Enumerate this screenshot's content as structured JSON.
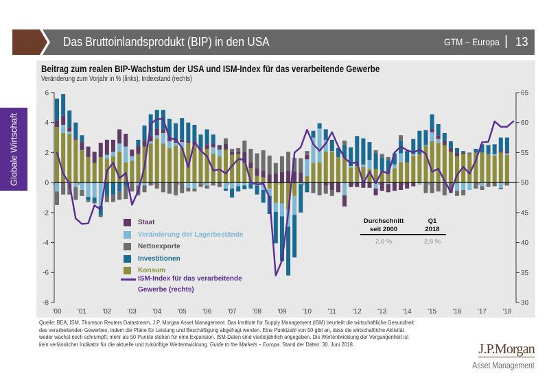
{
  "theme": {
    "header_accent": "#6b3d2a",
    "header_band": "#676767",
    "side_tab": "#5a2d91",
    "panel_bg": "#e8e8e8",
    "brand": "#5b3a29"
  },
  "header": {
    "title": "Das Bruttoinlandsprodukt (BIP) in den USA",
    "series_label": "GTM – Europa",
    "separator": "|",
    "page_number": "13"
  },
  "side_tab": {
    "label": "Globale Wirtschaft"
  },
  "stats_table": {
    "columns": [
      {
        "header": [
          "Durchschnitt",
          "seit 2000"
        ],
        "value": "2,0 %"
      },
      {
        "header": [
          "Q1",
          "2018"
        ],
        "value": "2,8 %"
      }
    ]
  },
  "footer": {
    "lines": [
      "Quelle: BEA, ISM, Thomson Reuters Datastream, J.P. Morgan Asset Management. Das Institute for Supply Management (ISM) beurteilt die wirtschaftliche Gesundheit",
      "des verarbeitenden Gewerbes, indem die Pläne für Leistung und Beschäftigung abgefragt werden. Eine Punktzahl von 50 gibt an, dass die wirtschaftliche Aktivität",
      "weder wächst noch schrumpft; mehr als 50 Punkte stehen für eine Expansion. ISM-Daten sind vierteljährlich angegeben. Die Wertentwicklung der Vergangenheit ist"
    ],
    "last_line": {
      "before": "kein verlässlicher Indikator für die aktuelle und zukünftige Wertentwicklung. ",
      "italic": "Guide to the Markets – Europa",
      "after": ". Stand der Daten: 30. Juni 2018."
    }
  },
  "logo": {
    "brand": "J.P.Morgan",
    "division": "Asset Management"
  },
  "chart_data": {
    "type": "bar",
    "subtype": "stacked bar with line on secondary axis",
    "title": "Beitrag zum realen BIP-Wachstum der USA und ISM-Index für das verarbeitende Gewerbe",
    "subtitle": "Veränderung zum Vorjahr in % (links); Indexstand (rechts)",
    "frequency": "quarterly",
    "x_start": 2000.0,
    "x_step": 0.25,
    "x_tick_labels": [
      "'00",
      "'01",
      "'02",
      "'03",
      "'04",
      "'05",
      "'06",
      "'07",
      "'08",
      "'09",
      "'10",
      "'11",
      "'12",
      "'13",
      "'14",
      "'15",
      "'16",
      "'17",
      "'18"
    ],
    "left_axis": {
      "label": "Veränderung zum Vorjahr in %",
      "range": [
        -8,
        6
      ],
      "ticks": [
        6,
        4,
        2,
        0,
        -2,
        -4,
        -6,
        -8
      ]
    },
    "right_axis": {
      "label": "Indexstand",
      "range": [
        30,
        65
      ],
      "ticks": [
        65,
        60,
        55,
        50,
        45,
        40,
        35,
        30
      ]
    },
    "grid": false,
    "series": [
      {
        "key": "konsum",
        "name": "Konsum",
        "color": "#8c8d3c",
        "axis": "left",
        "values": [
          3.7,
          3.3,
          3.25,
          2.85,
          2.15,
          1.7,
          1.3,
          1.7,
          1.6,
          1.75,
          2.05,
          1.35,
          1.45,
          1.9,
          2.4,
          2.6,
          2.95,
          2.6,
          2.3,
          2.45,
          2.3,
          2.65,
          2.55,
          2.2,
          2.25,
          1.9,
          1.75,
          2.2,
          1.85,
          1.9,
          1.3,
          0.95,
          0.45,
          0.35,
          -0.4,
          -1.35,
          -1.4,
          -1.8,
          -0.9,
          0.05,
          0.45,
          1.3,
          1.35,
          2.05,
          2.05,
          1.7,
          1.65,
          1.0,
          1.1,
          1.05,
          0.9,
          0.9,
          0.8,
          0.65,
          0.95,
          1.35,
          1.35,
          1.8,
          1.9,
          2.45,
          2.75,
          2.65,
          2.5,
          2.05,
          1.75,
          1.9,
          1.9,
          2.0,
          2.0,
          1.9,
          1.8,
          2.0,
          1.85
        ]
      },
      {
        "key": "lager",
        "name": "Veränderung der Lagerbestände",
        "color": "#7fb8d4",
        "axis": "left",
        "values": [
          -0.6,
          0.55,
          0.15,
          -0.3,
          -0.5,
          -0.95,
          -1.0,
          -1.55,
          0.25,
          0.3,
          0.55,
          1.05,
          0.3,
          -0.2,
          -0.2,
          0.15,
          0.2,
          0.7,
          0.45,
          0.2,
          0.4,
          -0.35,
          -0.4,
          -0.05,
          -0.2,
          0.45,
          0.45,
          -0.4,
          -0.4,
          -0.25,
          -0.2,
          -0.05,
          -0.2,
          -0.5,
          -0.5,
          -0.6,
          -0.85,
          -1.15,
          -1.25,
          -0.1,
          1.1,
          1.7,
          2.25,
          0.8,
          0.05,
          0.0,
          -0.85,
          0.1,
          0.0,
          0.15,
          0.6,
          -0.4,
          0.0,
          -0.1,
          0.25,
          0.6,
          0.0,
          0.1,
          -0.15,
          0.05,
          0.6,
          0.25,
          0.0,
          0.0,
          -0.55,
          -0.5,
          -0.5,
          0.0,
          -0.25,
          0.0,
          0.1,
          -0.35,
          0.1
        ]
      },
      {
        "key": "staat",
        "name": "Staat",
        "color": "#5e3b63",
        "axis": "left",
        "values": [
          0.45,
          0.6,
          0.3,
          0.1,
          0.55,
          0.7,
          0.75,
          0.95,
          1.0,
          0.8,
          0.95,
          0.85,
          0.45,
          0.55,
          0.4,
          0.4,
          0.45,
          0.25,
          0.2,
          0.15,
          0.15,
          0.1,
          0.15,
          0.1,
          0.3,
          0.25,
          0.25,
          0.4,
          0.2,
          0.15,
          0.75,
          0.4,
          0.5,
          0.45,
          0.55,
          0.6,
          0.7,
          0.8,
          0.75,
          0.62,
          0.3,
          0.0,
          0.0,
          -0.2,
          -0.5,
          -0.65,
          -0.75,
          -0.3,
          -0.3,
          -0.35,
          -0.35,
          -0.45,
          -0.55,
          -0.55,
          -0.55,
          -0.5,
          -0.4,
          -0.25,
          0.0,
          0.0,
          0.2,
          0.25,
          0.25,
          0.25,
          0.25,
          0.1,
          0.0,
          0.0,
          0.0,
          0.0,
          0.0,
          0.1,
          0.15
        ]
      },
      {
        "key": "investitionen",
        "name": "Investitionen",
        "color": "#1b6a92",
        "axis": "left",
        "values": [
          1.45,
          1.45,
          1.1,
          1.05,
          0.45,
          -0.25,
          -0.3,
          -0.65,
          -0.9,
          -0.8,
          -0.6,
          -0.25,
          0.0,
          0.4,
          1.0,
          1.4,
          1.25,
          1.3,
          1.3,
          1.15,
          1.45,
          1.25,
          1.15,
          0.9,
          1.0,
          0.6,
          0.05,
          -0.15,
          -0.6,
          -0.35,
          -0.25,
          -0.35,
          -0.6,
          -0.85,
          -1.2,
          -2.1,
          -3.0,
          -3.25,
          -2.85,
          -1.9,
          -0.65,
          0.45,
          0.35,
          0.7,
          0.75,
          0.6,
          0.85,
          1.25,
          2.0,
          1.75,
          1.2,
          1.05,
          0.85,
          0.85,
          0.75,
          0.85,
          0.75,
          1.0,
          1.55,
          1.0,
          1.0,
          0.75,
          0.55,
          0.45,
          0.3,
          0.1,
          0.0,
          0.25,
          0.55,
          0.6,
          0.65,
          0.9,
          0.9
        ]
      },
      {
        "key": "nettoexporte",
        "name": "Nettoexporte",
        "color": "#6d6d6d",
        "axis": "left",
        "values": [
          -0.9,
          -0.8,
          -0.8,
          -0.85,
          -0.4,
          -0.1,
          -0.1,
          -0.1,
          -0.4,
          -0.5,
          -0.55,
          -0.85,
          -0.6,
          -0.65,
          -0.45,
          -0.2,
          -0.4,
          -0.65,
          -0.75,
          -0.85,
          -0.7,
          -0.25,
          -0.2,
          -0.25,
          -0.2,
          -0.2,
          -0.3,
          0.35,
          0.2,
          0.25,
          0.75,
          0.9,
          1.0,
          1.35,
          1.25,
          0.7,
          1.05,
          1.25,
          0.9,
          0.95,
          0.25,
          -0.7,
          -0.85,
          -0.55,
          -0.4,
          0.0,
          0.3,
          0.0,
          0.0,
          0.0,
          0.0,
          0.2,
          0.25,
          0.2,
          0.0,
          0.35,
          0.0,
          0.0,
          0.0,
          -0.7,
          -0.7,
          -0.6,
          -0.85,
          -0.7,
          -0.35,
          -0.35,
          0.1,
          -0.4,
          -0.25,
          -0.3,
          -0.25,
          -0.1,
          -0.2
        ]
      }
    ],
    "line_series": {
      "key": "ism",
      "name": "ISM-Index für das verarbeitende Gewerbe (rechts)",
      "color": "#5b2d91",
      "axis": "right",
      "values": [
        55.0,
        51.5,
        49.8,
        44.0,
        43.1,
        43.2,
        46.2,
        45.5,
        52.0,
        53.3,
        50.7,
        51.6,
        46.3,
        48.6,
        52.6,
        59.8,
        60.6,
        60.6,
        57.4,
        57.2,
        55.8,
        52.6,
        56.8,
        55.3,
        54.4,
        52.0,
        52.2,
        51.5,
        52.8,
        53.9,
        53.8,
        50.1,
        49.7,
        49.8,
        47.5,
        34.5,
        37.0,
        45.0,
        55.0,
        55.9,
        58.8,
        56.4,
        55.3,
        56.5,
        58.4,
        56.0,
        54.1,
        53.2,
        53.4,
        49.9,
        51.8,
        49.9,
        51.9,
        51.5,
        55.0,
        56.0,
        55.4,
        55.0,
        55.5,
        54.8,
        51.8,
        52.3,
        50.3,
        48.4,
        51.3,
        52.6,
        51.5,
        53.7,
        56.7,
        56.8,
        60.2,
        59.3,
        59.3,
        60.2
      ]
    },
    "legend": {
      "position": "bottom-left inside plot",
      "items": [
        {
          "label": "Staat",
          "color": "#5e3b63",
          "text_color": "#5e3b63",
          "marker": "square"
        },
        {
          "label": "Veränderung der Lagerbestände",
          "color": "#7fb8d4",
          "text_color": "#7fb8d4",
          "marker": "square"
        },
        {
          "label": "Nettoexporte",
          "color": "#6d6d6d",
          "text_color": "#555555",
          "marker": "square"
        },
        {
          "label": "Investitionen",
          "color": "#1b6a92",
          "text_color": "#1b6a92",
          "marker": "square"
        },
        {
          "label": "Konsum",
          "color": "#8c8d3c",
          "text_color": "#8c8d3c",
          "marker": "square"
        },
        {
          "label_lines": [
            "ISM-Index für das verarbeitende",
            "Gewerbe (rechts)"
          ],
          "color": "#5b2d91",
          "text_color": "#5b2d91",
          "marker": "line"
        }
      ]
    }
  }
}
